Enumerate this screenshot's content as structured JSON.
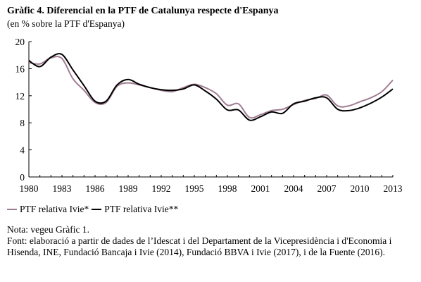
{
  "title": "Gràfic 4. Diferencial en la PTF de Catalunya respecte d'Espanya",
  "subtitle": "(en % sobre la PTF d'Espanya)",
  "notes": {
    "nota": "Nota: vegeu Gràfic 1.",
    "font": "Font: elaboració a partir de dades de l’Idescat i del Departament de la Vicepresidència i d'Economia i Hisenda, INE, Fundació Bancaja i Ivie (2014), Fundació BBVA i Ivie (2017), i de la Fuente (2016)."
  },
  "chart_data": {
    "type": "line",
    "x": [
      1980,
      1981,
      1982,
      1983,
      1984,
      1985,
      1986,
      1987,
      1988,
      1989,
      1990,
      1991,
      1992,
      1993,
      1994,
      1995,
      1996,
      1997,
      1998,
      1999,
      2000,
      2001,
      2002,
      2003,
      2004,
      2005,
      2006,
      2007,
      2008,
      2009,
      2010,
      2011,
      2012,
      2013
    ],
    "xticks": [
      "1980",
      "1983",
      "1986",
      "1989",
      "1992",
      "1995",
      "1998",
      "2001",
      "2004",
      "2007",
      "2010",
      "2013"
    ],
    "yticks": [
      "0",
      "4",
      "8",
      "12",
      "16",
      "20"
    ],
    "ylim": [
      0,
      20
    ],
    "xlim": [
      1980,
      2013
    ],
    "grid": false,
    "legend_position": "bottom",
    "series": [
      {
        "name": "PTF relativa Ivie*",
        "color": "#a07c92",
        "values": [
          16.9,
          16.7,
          17.6,
          17.5,
          14.5,
          12.8,
          11.0,
          11.0,
          13.4,
          13.9,
          13.6,
          13.2,
          12.8,
          12.6,
          13.2,
          13.7,
          13.2,
          12.3,
          10.6,
          10.8,
          8.8,
          9.2,
          9.8,
          10.0,
          10.7,
          11.3,
          11.6,
          12.1,
          10.5,
          10.5,
          11.1,
          11.7,
          12.6,
          14.3
        ]
      },
      {
        "name": "PTF relativa Ivie**",
        "color": "#000000",
        "values": [
          17.2,
          16.3,
          17.7,
          18.1,
          15.8,
          13.5,
          11.2,
          11.2,
          13.6,
          14.4,
          13.7,
          13.2,
          12.9,
          12.8,
          13.0,
          13.6,
          12.7,
          11.5,
          9.9,
          9.9,
          8.4,
          8.9,
          9.6,
          9.4,
          10.8,
          11.2,
          11.7,
          11.7,
          10.0,
          9.8,
          10.2,
          10.9,
          11.8,
          13.0
        ]
      }
    ]
  }
}
